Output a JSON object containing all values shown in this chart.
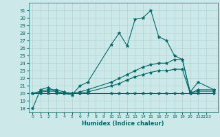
{
  "xlabel": "Humidex (Indice chaleur)",
  "xlim": [
    -0.5,
    23.5
  ],
  "ylim": [
    17.5,
    32
  ],
  "yticks": [
    18,
    19,
    20,
    21,
    22,
    23,
    24,
    25,
    26,
    27,
    28,
    29,
    30,
    31
  ],
  "xtick_positions": [
    0,
    1,
    2,
    3,
    4,
    5,
    6,
    7,
    8,
    9,
    10,
    11,
    12,
    13,
    14,
    15,
    16,
    17,
    18,
    19,
    20,
    21,
    22
  ],
  "xtick_labels": [
    "0",
    "1",
    "2",
    "3",
    "4",
    "5",
    "6",
    "7",
    "8",
    "9",
    "10",
    "11",
    "12",
    "13",
    "14",
    "15",
    "16",
    "17",
    "18",
    "19",
    "20",
    "21",
    "2223"
  ],
  "bg_color": "#cce8e8",
  "line_color": "#006868",
  "grid_color": "#aad4d4",
  "lines": [
    {
      "x": [
        0,
        1,
        2,
        3,
        4,
        5,
        6,
        7,
        10,
        11,
        12,
        13,
        14,
        15,
        16,
        17,
        18,
        19,
        20,
        21,
        23
      ],
      "y": [
        18,
        20.5,
        20.8,
        20.2,
        20.0,
        19.8,
        21.0,
        21.5,
        26.5,
        28.0,
        26.3,
        29.8,
        30.0,
        31.0,
        27.5,
        27.0,
        25.0,
        24.5,
        20.2,
        21.5,
        20.5
      ]
    },
    {
      "x": [
        0,
        1,
        2,
        3,
        4,
        5,
        6,
        7,
        10,
        11,
        12,
        13,
        14,
        15,
        16,
        17,
        18,
        19,
        20,
        21,
        23
      ],
      "y": [
        20.0,
        20.3,
        20.5,
        20.5,
        20.2,
        20.0,
        20.2,
        20.5,
        21.5,
        22.0,
        22.5,
        23.0,
        23.5,
        23.8,
        24.0,
        24.0,
        24.5,
        24.5,
        20.0,
        20.5,
        20.5
      ]
    },
    {
      "x": [
        0,
        1,
        2,
        3,
        4,
        5,
        6,
        7,
        10,
        11,
        12,
        13,
        14,
        15,
        16,
        17,
        18,
        19,
        20,
        21,
        23
      ],
      "y": [
        20.0,
        20.2,
        20.3,
        20.3,
        20.0,
        20.0,
        20.0,
        20.2,
        21.0,
        21.3,
        21.8,
        22.2,
        22.5,
        22.8,
        23.0,
        23.0,
        23.2,
        23.2,
        20.0,
        20.3,
        20.3
      ]
    },
    {
      "x": [
        0,
        1,
        2,
        3,
        4,
        5,
        6,
        7,
        10,
        11,
        12,
        13,
        14,
        15,
        16,
        17,
        18,
        19,
        20,
        21,
        23
      ],
      "y": [
        20.0,
        20.0,
        20.0,
        20.0,
        20.0,
        20.0,
        20.0,
        20.0,
        20.0,
        20.0,
        20.0,
        20.0,
        20.0,
        20.0,
        20.0,
        20.0,
        20.0,
        20.0,
        20.0,
        20.0,
        20.0
      ]
    }
  ]
}
